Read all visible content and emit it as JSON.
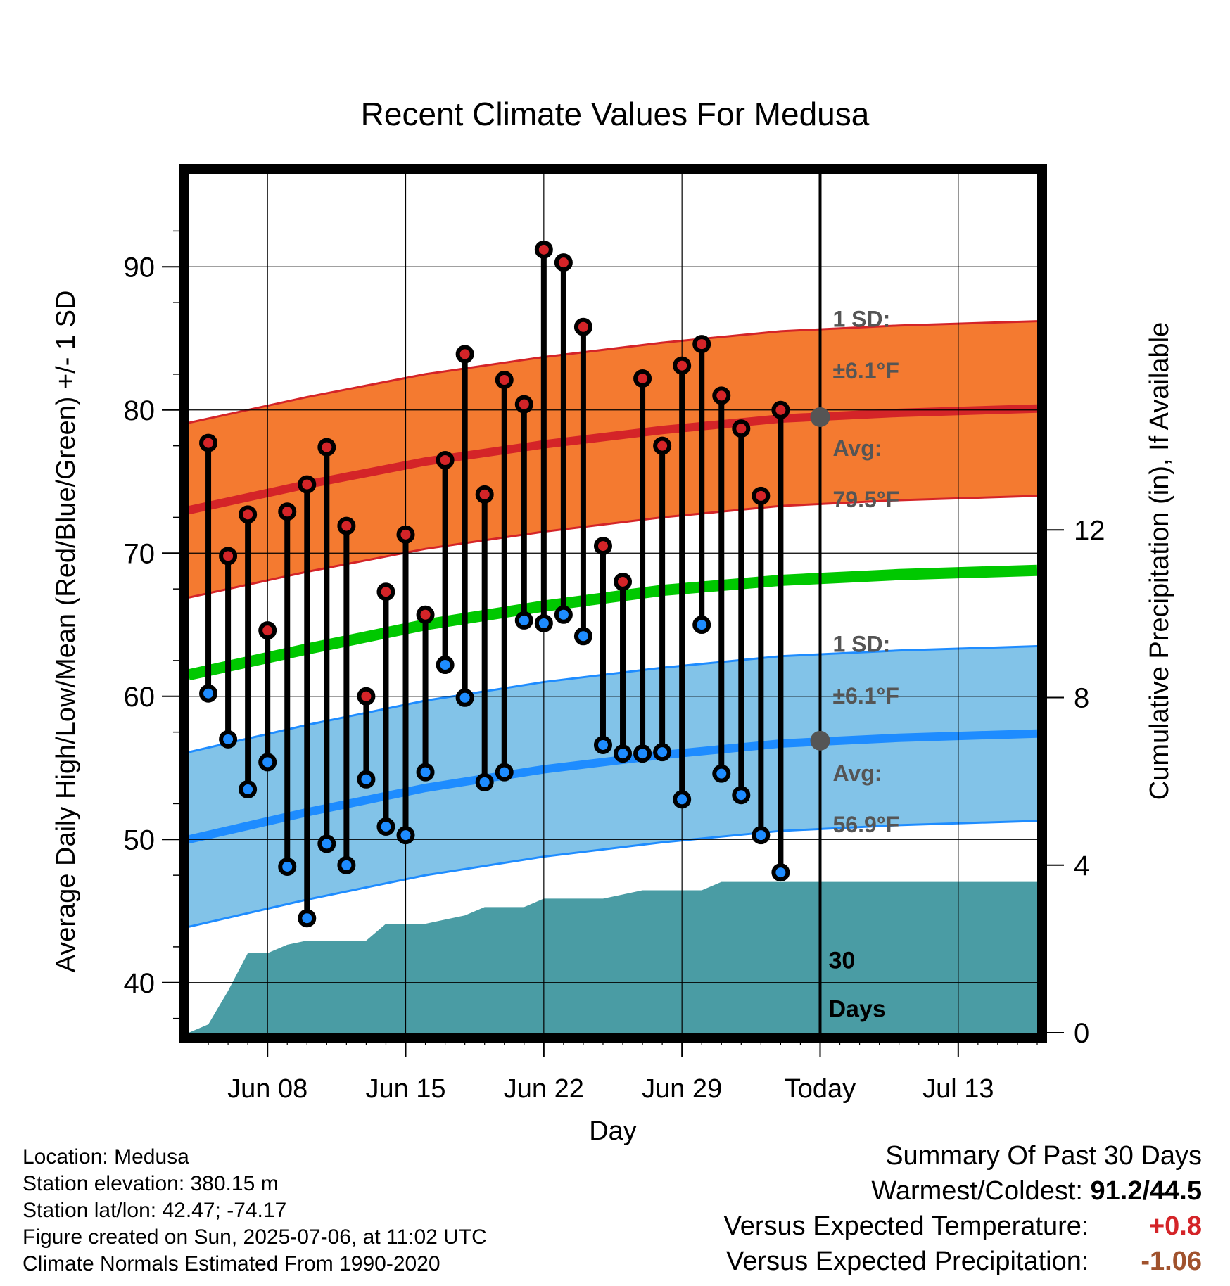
{
  "chart_data": {
    "type": "line",
    "title": "Recent Climate Values For Medusa",
    "xlabel": "Day",
    "ylabel": "Average Daily High/Low/Mean (Red/Blue/Green) +/- 1 SD",
    "y2label": "Cumulative Precipitation (in), If Available",
    "ylim": [
      36.5,
      96.5
    ],
    "y2lim": [
      0,
      20.5
    ],
    "xlim": [
      "2025-06-04",
      "2025-07-17"
    ],
    "yticks": [
      40,
      50,
      60,
      70,
      80,
      90
    ],
    "y2ticks": [
      0,
      4,
      8,
      12
    ],
    "xticks": [
      {
        "date": "2025-06-08",
        "label": "Jun 08"
      },
      {
        "date": "2025-06-15",
        "label": "Jun 15"
      },
      {
        "date": "2025-06-22",
        "label": "Jun 22"
      },
      {
        "date": "2025-06-29",
        "label": "Jun 29"
      },
      {
        "date": "2025-07-06",
        "label": "Today"
      },
      {
        "date": "2025-07-13",
        "label": "Jul 13"
      }
    ],
    "grid": true,
    "today": "2025-07-06",
    "normals": {
      "dates": [
        "2025-06-04",
        "2025-06-10",
        "2025-06-16",
        "2025-06-22",
        "2025-06-28",
        "2025-07-04",
        "2025-07-10",
        "2025-07-17"
      ],
      "high_avg": [
        73.0,
        74.8,
        76.4,
        77.6,
        78.6,
        79.4,
        79.8,
        80.1
      ],
      "high_sd": 6.1,
      "low_avg": [
        50.0,
        51.9,
        53.6,
        54.9,
        55.9,
        56.7,
        57.1,
        57.4
      ],
      "low_sd": 6.1,
      "mean_avg": [
        61.5,
        63.3,
        65.0,
        66.3,
        67.4,
        68.1,
        68.5,
        68.8
      ],
      "colors": {
        "high": "#d42428",
        "high_band": "#f47a30",
        "low": "#1e8cff",
        "low_band": "#82c3e8",
        "mean": "#00c800",
        "precip": "#4a9ca4"
      }
    },
    "daily": {
      "dates": [
        "2025-06-05",
        "2025-06-06",
        "2025-06-07",
        "2025-06-08",
        "2025-06-09",
        "2025-06-10",
        "2025-06-11",
        "2025-06-12",
        "2025-06-13",
        "2025-06-14",
        "2025-06-15",
        "2025-06-16",
        "2025-06-17",
        "2025-06-18",
        "2025-06-19",
        "2025-06-20",
        "2025-06-21",
        "2025-06-22",
        "2025-06-23",
        "2025-06-24",
        "2025-06-25",
        "2025-06-26",
        "2025-06-27",
        "2025-06-28",
        "2025-06-29",
        "2025-06-30",
        "2025-07-01",
        "2025-07-02",
        "2025-07-03",
        "2025-07-04"
      ],
      "high": [
        77.7,
        69.8,
        72.7,
        64.6,
        72.9,
        74.8,
        77.4,
        71.9,
        60.0,
        67.3,
        71.3,
        65.7,
        76.5,
        83.9,
        74.1,
        82.1,
        80.4,
        91.2,
        90.3,
        85.8,
        70.5,
        68.0,
        82.2,
        77.5,
        83.1,
        84.6,
        81.0,
        78.7,
        74.0,
        80.0
      ],
      "low": [
        60.2,
        57.0,
        53.5,
        55.4,
        48.1,
        44.5,
        49.7,
        48.2,
        54.2,
        50.9,
        50.3,
        54.7,
        62.2,
        59.9,
        54.0,
        54.7,
        65.3,
        65.1,
        65.7,
        64.2,
        56.6,
        56.0,
        56.0,
        56.1,
        52.8,
        65.0,
        54.6,
        53.1,
        50.3,
        47.7
      ]
    },
    "precip": {
      "dates": [
        "2025-06-04",
        "2025-06-05",
        "2025-06-06",
        "2025-06-07",
        "2025-06-08",
        "2025-06-09",
        "2025-06-10",
        "2025-06-11",
        "2025-06-12",
        "2025-06-13",
        "2025-06-14",
        "2025-06-15",
        "2025-06-16",
        "2025-06-17",
        "2025-06-18",
        "2025-06-19",
        "2025-06-20",
        "2025-06-21",
        "2025-06-22",
        "2025-06-23",
        "2025-06-24",
        "2025-06-25",
        "2025-06-26",
        "2025-06-27",
        "2025-06-28",
        "2025-06-29",
        "2025-06-30",
        "2025-07-01",
        "2025-07-02",
        "2025-07-03",
        "2025-07-04",
        "2025-07-17"
      ],
      "values": [
        0.0,
        0.2,
        1.0,
        1.9,
        1.9,
        2.1,
        2.2,
        2.2,
        2.2,
        2.2,
        2.6,
        2.6,
        2.6,
        2.7,
        2.8,
        3.0,
        3.0,
        3.0,
        3.2,
        3.2,
        3.2,
        3.2,
        3.3,
        3.4,
        3.4,
        3.4,
        3.4,
        3.6,
        3.6,
        3.6,
        3.6,
        3.6
      ]
    },
    "annotations": {
      "high_sd_label": "1 SD:",
      "high_sd_value": "±6.1°F",
      "high_avg_label": "Avg:",
      "high_avg_value": "79.5°F",
      "low_sd_label": "1 SD:",
      "low_sd_value": "±6.1°F",
      "low_avg_label": "Avg:",
      "low_avg_value": "56.9°F",
      "high_avg_today": 79.5,
      "low_avg_today": 56.9,
      "days_line1": "30",
      "days_line2": "Days"
    }
  },
  "footer": {
    "location": "Location: Medusa",
    "elevation": "Station elevation: 380.15 m",
    "latlon": "Station lat/lon: 42.47; -74.17",
    "created": "Figure created on Sun, 2025-07-06, at 11:02 UTC",
    "normals": "Climate Normals Estimated From 1990-2020"
  },
  "summary": {
    "title": "Summary Of Past 30 Days",
    "warmest_label": "Warmest/Coldest:",
    "warmest_value": "91.2/44.5",
    "temp_label": "Versus Expected Temperature:",
    "temp_value": "+0.8",
    "temp_color": "#d42428",
    "precip_label": "Versus Expected Precipitation:",
    "precip_value": "-1.06",
    "precip_color": "#a0522d"
  }
}
